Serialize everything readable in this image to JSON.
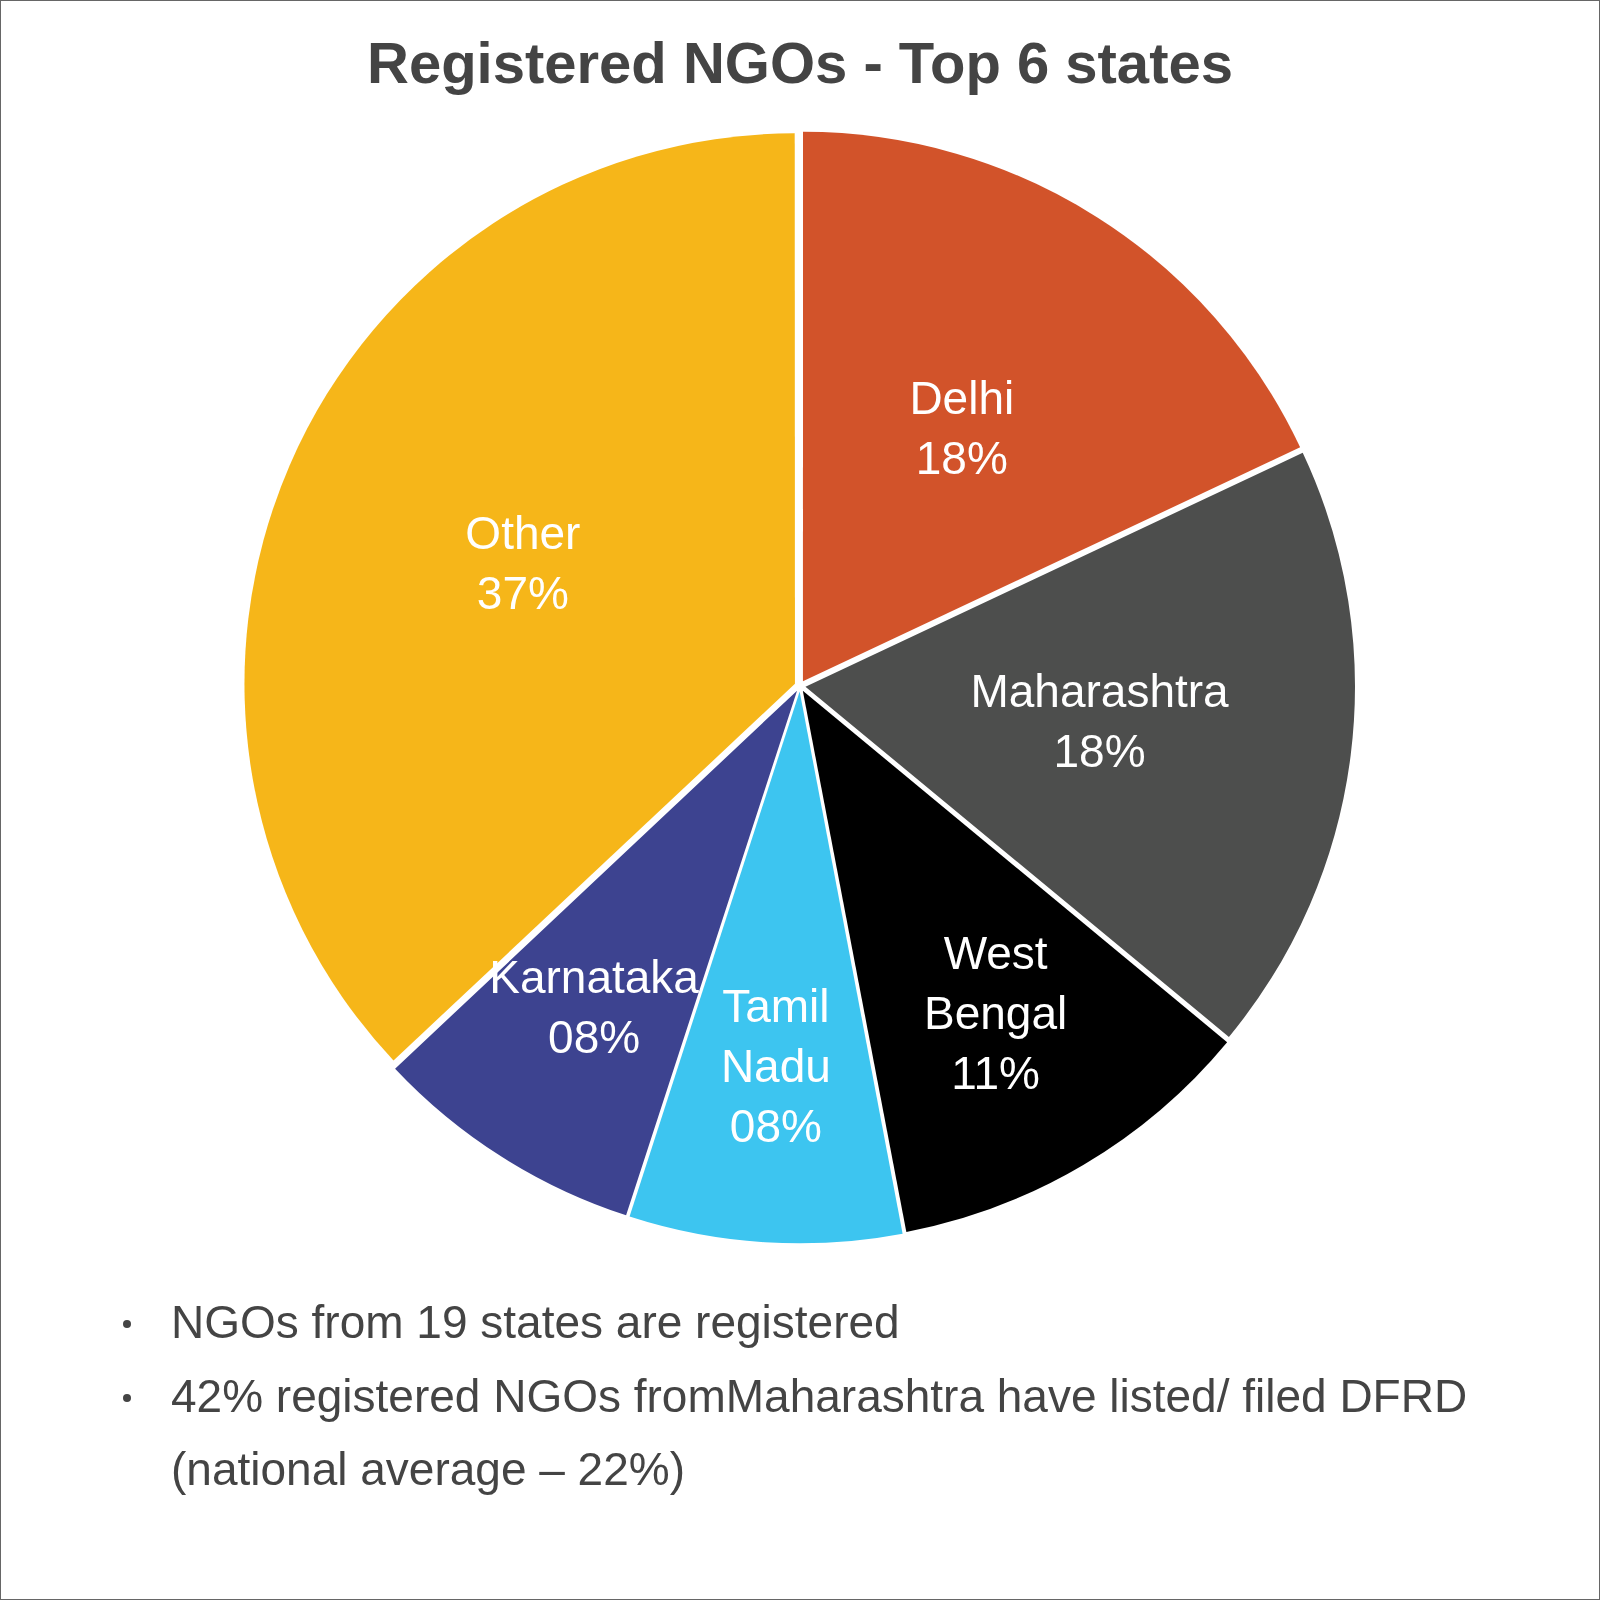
{
  "chart_data": {
    "type": "pie",
    "title": "Registered NGOs - Top 6 states",
    "categories": [
      "Delhi",
      "Maharashtra",
      "West Bengal",
      "Tamil Nadu",
      "Karnataka",
      "Other"
    ],
    "values": [
      18,
      18,
      11,
      8,
      8,
      37
    ],
    "colors": [
      "#d2532a",
      "#4d4e4d",
      "#000000",
      "#3dc5f0",
      "#3d4390",
      "#f6b619"
    ],
    "value_labels": [
      "18%",
      "18%",
      "11%",
      "08%",
      "08%",
      "37%"
    ],
    "annotations": [
      "NGOs from 19 states are registered",
      "42% registered NGOs fromMaharashtra have listed/ filed DFRD (national average – 22%)"
    ]
  }
}
